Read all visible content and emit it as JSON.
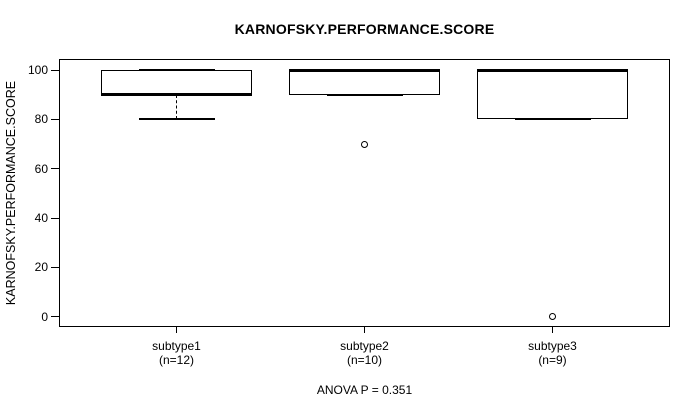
{
  "chart_data": {
    "type": "boxplot",
    "title": "KARNOFSKY.PERFORMANCE.SCORE",
    "ylabel": "KARNOFSKY.PERFORMANCE.SCORE",
    "annotation": "ANOVA P = 0.351",
    "yticks": [
      0,
      20,
      40,
      60,
      80,
      100
    ],
    "ylim": [
      -4,
      104
    ],
    "grid": false,
    "legend": "none",
    "groups": [
      {
        "label": "subtype1",
        "n_label": "(n=12)",
        "n": 12,
        "q1": 90,
        "median": 90,
        "q3": 100,
        "whisker_low": 80,
        "whisker_high": 100,
        "outliers": []
      },
      {
        "label": "subtype2",
        "n_label": "(n=10)",
        "n": 10,
        "q1": 90,
        "median": 100,
        "q3": 100,
        "whisker_low": 90,
        "whisker_high": 100,
        "outliers": [
          70
        ]
      },
      {
        "label": "subtype3",
        "n_label": "(n=9)",
        "n": 9,
        "q1": 80,
        "median": 100,
        "q3": 100,
        "whisker_low": 80,
        "whisker_high": 100,
        "outliers": [
          0
        ]
      }
    ],
    "colors": {
      "line": "#000000",
      "box_fill": "#ffffff",
      "background": "#ffffff"
    }
  }
}
